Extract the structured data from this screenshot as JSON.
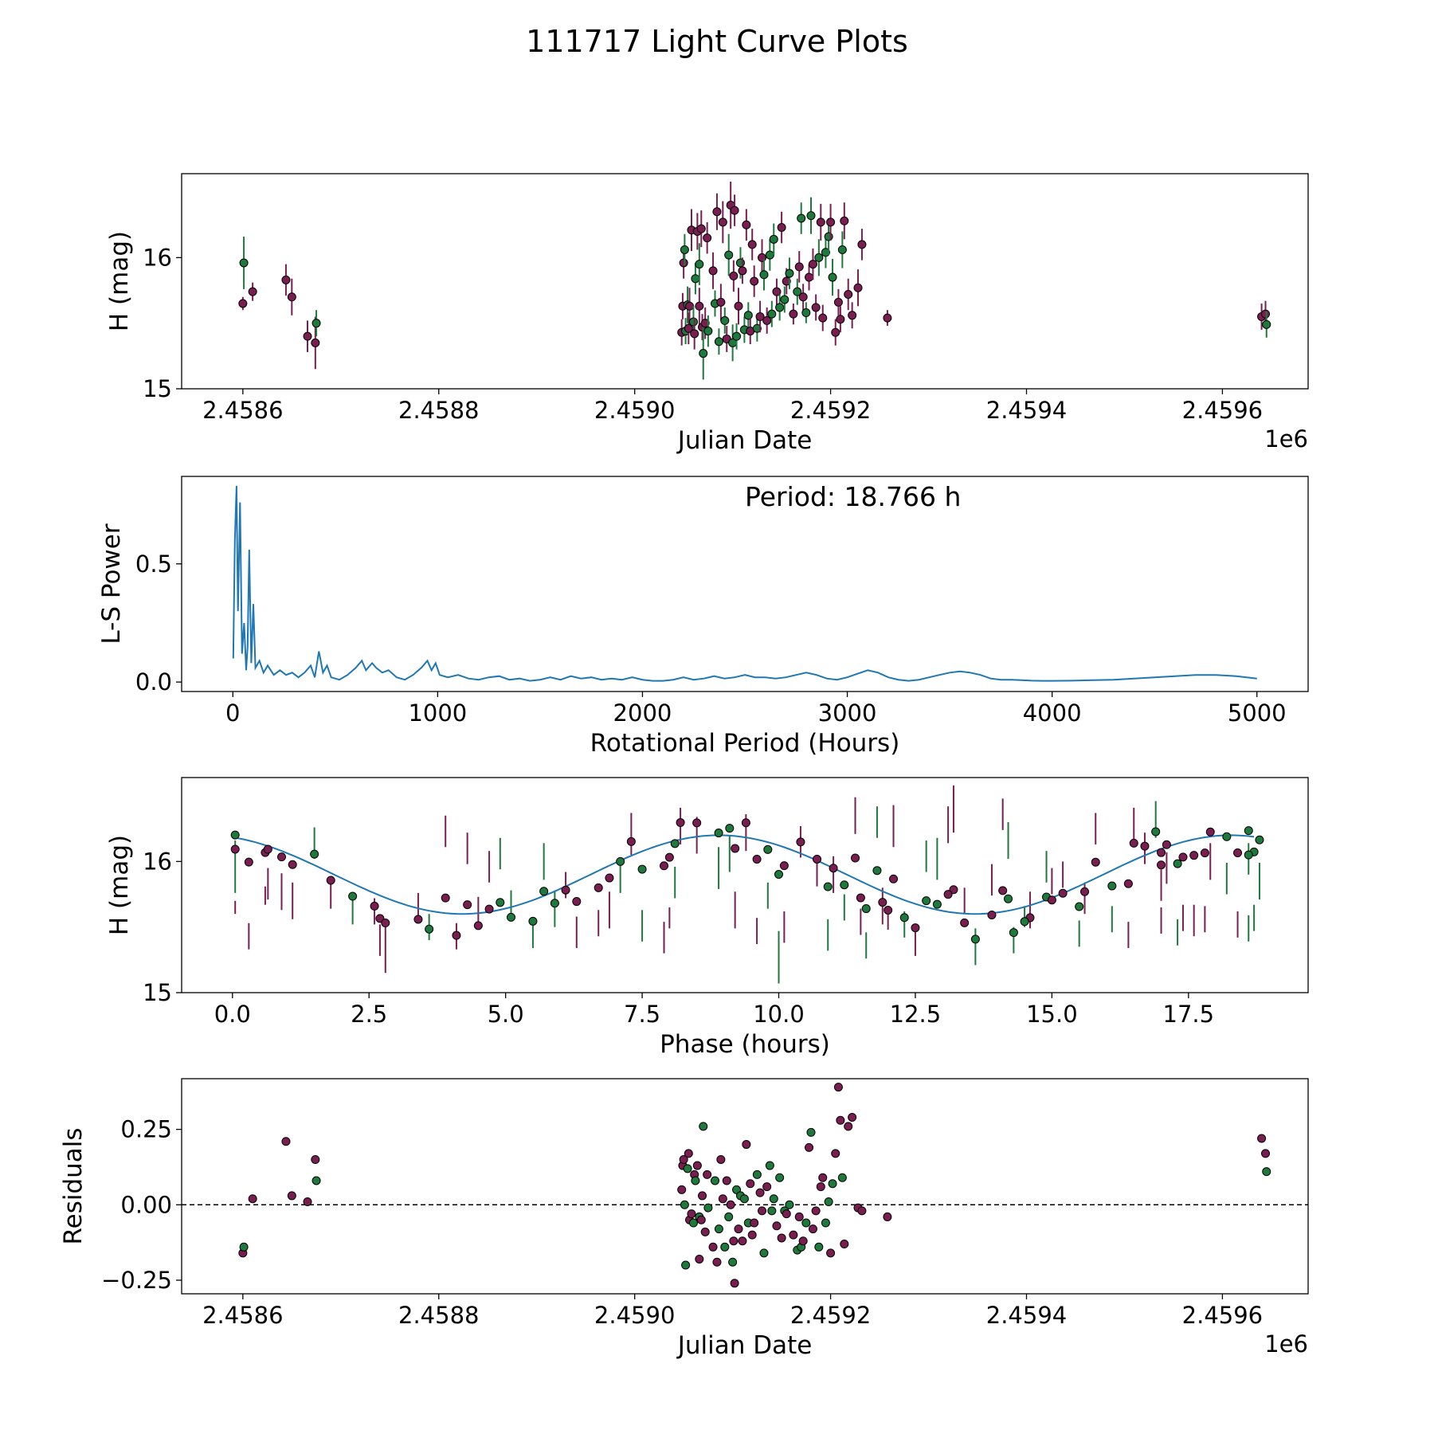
{
  "title": "111717 Light Curve Plots",
  "colors": {
    "magenta": "#7a1e52",
    "green": "#1e7a3c",
    "curve": "#1f77b4",
    "zero_line": "#000000"
  },
  "chart_data": [
    {
      "id": "lightcurve",
      "type": "scatter",
      "xlabel": "Julian Date",
      "ylabel": "H (mag)",
      "offset_label": "1e6",
      "xlim": [
        2458537.5,
        2459687.5
      ],
      "ylim": [
        15.0,
        16.64
      ],
      "xticks": [
        2458600,
        2458800,
        2459000,
        2459200,
        2459400,
        2459600
      ],
      "xtick_labels": [
        "2.4586",
        "2.4588",
        "2.4590",
        "2.4592",
        "2.4594",
        "2.4596"
      ],
      "yticks": [
        15,
        16
      ],
      "ytick_labels": [
        "15",
        "16"
      ]
    },
    {
      "id": "periodogram",
      "type": "line",
      "xlabel": "Rotational Period (Hours)",
      "ylabel": "L-S Power",
      "annotation": "Period: 18.766 h",
      "xlim": [
        -250,
        5250
      ],
      "ylim": [
        -0.04,
        0.87
      ],
      "xticks": [
        0,
        1000,
        2000,
        3000,
        4000,
        5000
      ],
      "xtick_labels": [
        "0",
        "1000",
        "2000",
        "3000",
        "4000",
        "5000"
      ],
      "yticks": [
        0.0,
        0.5
      ],
      "ytick_labels": [
        "0.0",
        "0.5"
      ],
      "x": [
        2,
        10,
        18,
        25,
        35,
        45,
        55,
        65,
        72,
        80,
        90,
        100,
        110,
        130,
        150,
        170,
        200,
        230,
        260,
        290,
        320,
        350,
        380,
        400,
        420,
        440,
        460,
        480,
        520,
        560,
        600,
        630,
        650,
        680,
        700,
        730,
        760,
        800,
        840,
        880,
        920,
        950,
        970,
        990,
        1010,
        1050,
        1100,
        1150,
        1200,
        1250,
        1300,
        1350,
        1400,
        1450,
        1500,
        1550,
        1600,
        1650,
        1700,
        1750,
        1800,
        1850,
        1900,
        1950,
        2000,
        2050,
        2100,
        2150,
        2200,
        2250,
        2300,
        2350,
        2400,
        2450,
        2500,
        2550,
        2600,
        2650,
        2700,
        2750,
        2800,
        2850,
        2900,
        2950,
        3000,
        3050,
        3100,
        3150,
        3200,
        3250,
        3300,
        3350,
        3400,
        3450,
        3500,
        3550,
        3600,
        3650,
        3700,
        3750,
        3800,
        3850,
        3900,
        3950,
        4000,
        4100,
        4200,
        4300,
        4400,
        4500,
        4600,
        4700,
        4800,
        4900,
        5000
      ],
      "power": [
        0.1,
        0.6,
        0.83,
        0.3,
        0.76,
        0.12,
        0.25,
        0.05,
        0.15,
        0.56,
        0.08,
        0.33,
        0.06,
        0.09,
        0.04,
        0.07,
        0.03,
        0.05,
        0.03,
        0.04,
        0.02,
        0.04,
        0.07,
        0.02,
        0.13,
        0.04,
        0.07,
        0.02,
        0.01,
        0.03,
        0.06,
        0.09,
        0.05,
        0.08,
        0.06,
        0.04,
        0.05,
        0.02,
        0.01,
        0.03,
        0.06,
        0.09,
        0.05,
        0.08,
        0.03,
        0.02,
        0.03,
        0.015,
        0.01,
        0.02,
        0.025,
        0.01,
        0.015,
        0.005,
        0.01,
        0.02,
        0.01,
        0.025,
        0.015,
        0.02,
        0.01,
        0.015,
        0.01,
        0.02,
        0.01,
        0.005,
        0.005,
        0.01,
        0.02,
        0.01,
        0.015,
        0.025,
        0.015,
        0.02,
        0.03,
        0.02,
        0.02,
        0.015,
        0.02,
        0.03,
        0.04,
        0.03,
        0.015,
        0.01,
        0.02,
        0.035,
        0.05,
        0.04,
        0.02,
        0.01,
        0.005,
        0.01,
        0.02,
        0.03,
        0.04,
        0.045,
        0.04,
        0.03,
        0.015,
        0.01,
        0.01,
        0.008,
        0.006,
        0.005,
        0.005,
        0.006,
        0.008,
        0.01,
        0.015,
        0.02,
        0.025,
        0.03,
        0.03,
        0.025,
        0.015
      ]
    },
    {
      "id": "phased",
      "type": "scatter",
      "xlabel": "Phase (hours)",
      "ylabel": "H (mag)",
      "xlim": [
        -0.93,
        19.69
      ],
      "ylim": [
        15.0,
        16.64
      ],
      "xticks": [
        0,
        2.5,
        5,
        7.5,
        10,
        12.5,
        15,
        17.5
      ],
      "xtick_labels": [
        "0.0",
        "2.5",
        "5.0",
        "7.5",
        "10.0",
        "12.5",
        "15.0",
        "17.5"
      ],
      "yticks": [
        15,
        16
      ],
      "ytick_labels": [
        "15",
        "16"
      ],
      "fit": {
        "mean": 15.9,
        "amplitude": 0.3,
        "period_h": 9.383,
        "peak_phase_h": 8.9
      }
    },
    {
      "id": "residuals",
      "type": "scatter",
      "xlabel": "Julian Date",
      "ylabel": "Residuals",
      "offset_label": "1e6",
      "xlim": [
        2458537.5,
        2459687.5
      ],
      "ylim": [
        -0.295,
        0.418
      ],
      "xticks": [
        2458600,
        2458800,
        2459000,
        2459200,
        2459400,
        2459600
      ],
      "xtick_labels": [
        "2.4586",
        "2.4588",
        "2.4590",
        "2.4592",
        "2.4594",
        "2.4596"
      ],
      "yticks": [
        -0.25,
        0.0,
        0.25
      ],
      "ytick_labels": [
        "−0.25",
        "0.00",
        "0.25"
      ],
      "zero_line": 0.0
    }
  ],
  "observations": [
    {
      "jd": 2458600,
      "h": 15.65,
      "err": 0.05,
      "res": -0.16,
      "ph": 0.05,
      "c": 1
    },
    {
      "jd": 2458601,
      "h": 15.96,
      "err": 0.2,
      "res": -0.14,
      "ph": 0.05,
      "c": 0
    },
    {
      "jd": 2458610,
      "h": 15.74,
      "err": 0.07,
      "res": 0.02,
      "ph": 0.6,
      "c": 1
    },
    {
      "jd": 2458644,
      "h": 15.83,
      "err": 0.12,
      "res": 0.21,
      "ph": 0.65,
      "c": 1
    },
    {
      "jd": 2458650,
      "h": 15.7,
      "err": 0.14,
      "res": 0.03,
      "ph": 1.1,
      "c": 1
    },
    {
      "jd": 2458666,
      "h": 15.4,
      "err": 0.12,
      "res": 0.01,
      "ph": 2.7,
      "c": 1
    },
    {
      "jd": 2458674,
      "h": 15.35,
      "err": 0.2,
      "res": 0.15,
      "ph": 2.8,
      "c": 1
    },
    {
      "jd": 2458675,
      "h": 15.5,
      "err": 0.1,
      "res": 0.08,
      "ph": 3.6,
      "c": 0
    },
    {
      "jd": 2459048,
      "h": 15.43,
      "err": 0.1,
      "res": 0.05,
      "ph": 4.1,
      "c": 1
    },
    {
      "jd": 2459049,
      "h": 15.63,
      "err": 0.1,
      "res": 0.13,
      "ph": 4.5,
      "c": 1
    },
    {
      "jd": 2459050,
      "h": 15.96,
      "err": 0.12,
      "res": 0.15,
      "ph": 4.7,
      "c": 1
    },
    {
      "jd": 2459051,
      "h": 16.06,
      "err": 0.12,
      "res": 0.0,
      "ph": 4.9,
      "c": 0
    },
    {
      "jd": 2459052,
      "h": 15.44,
      "err": 0.1,
      "res": -0.2,
      "ph": 5.5,
      "c": 0
    },
    {
      "jd": 2459054,
      "h": 15.64,
      "err": 0.14,
      "res": 0.12,
      "ph": 5.9,
      "c": 0
    },
    {
      "jd": 2459055,
      "h": 15.46,
      "err": 0.12,
      "res": 0.17,
      "ph": 6.3,
      "c": 1
    },
    {
      "jd": 2459056,
      "h": 15.63,
      "err": 0.14,
      "res": -0.05,
      "ph": 6.9,
      "c": 1
    },
    {
      "jd": 2459058,
      "h": 16.21,
      "err": 0.16,
      "res": -0.03,
      "ph": 7.3,
      "c": 1
    },
    {
      "jd": 2459060,
      "h": 15.51,
      "err": 0.12,
      "res": -0.06,
      "ph": 7.5,
      "c": 0
    },
    {
      "jd": 2459061,
      "h": 15.42,
      "err": 0.12,
      "res": 0.1,
      "ph": 7.9,
      "c": 1
    },
    {
      "jd": 2459062,
      "h": 15.84,
      "err": 0.12,
      "res": 0.08,
      "ph": 8.1,
      "c": 0
    },
    {
      "jd": 2459064,
      "h": 16.2,
      "err": 0.14,
      "res": 0.13,
      "ph": 8.5,
      "c": 1
    },
    {
      "jd": 2459066,
      "h": 15.95,
      "err": 0.16,
      "res": -0.04,
      "ph": 8.9,
      "c": 0
    },
    {
      "jd": 2459066,
      "h": 15.63,
      "err": 0.14,
      "res": -0.18,
      "ph": 9.2,
      "c": 1
    },
    {
      "jd": 2459068,
      "h": 16.22,
      "err": 0.14,
      "res": -0.05,
      "ph": 9.4,
      "c": 1
    },
    {
      "jd": 2459069,
      "h": 15.47,
      "err": 0.1,
      "res": 0.03,
      "ph": 9.6,
      "c": 1
    },
    {
      "jd": 2459070,
      "h": 15.27,
      "err": 0.2,
      "res": 0.26,
      "ph": 10.0,
      "c": 0
    },
    {
      "jd": 2459072,
      "h": 15.5,
      "err": 0.12,
      "res": -0.09,
      "ph": 10.1,
      "c": 1
    },
    {
      "jd": 2459074,
      "h": 16.15,
      "err": 0.12,
      "res": 0.1,
      "ph": 10.4,
      "c": 1
    },
    {
      "jd": 2459075,
      "h": 15.44,
      "err": 0.12,
      "res": -0.01,
      "ph": 10.9,
      "c": 0
    },
    {
      "jd": 2459080,
      "h": 15.9,
      "err": 0.14,
      "res": -0.14,
      "ph": 11.0,
      "c": 1
    },
    {
      "jd": 2459082,
      "h": 15.65,
      "err": 0.1,
      "res": 0.08,
      "ph": 11.2,
      "c": 0
    },
    {
      "jd": 2459084,
      "h": 16.35,
      "err": 0.14,
      "res": -0.19,
      "ph": 11.4,
      "c": 1
    },
    {
      "jd": 2459086,
      "h": 15.36,
      "err": 0.1,
      "res": -0.08,
      "ph": 11.6,
      "c": 0
    },
    {
      "jd": 2459088,
      "h": 15.66,
      "err": 0.14,
      "res": 0.15,
      "ph": 11.9,
      "c": 1
    },
    {
      "jd": 2459090,
      "h": 16.27,
      "err": 0.16,
      "res": 0.02,
      "ph": 12.1,
      "c": 1
    },
    {
      "jd": 2459092,
      "h": 15.52,
      "err": 0.1,
      "res": -0.14,
      "ph": 12.3,
      "c": 0
    },
    {
      "jd": 2459094,
      "h": 15.38,
      "err": 0.1,
      "res": 0.08,
      "ph": 12.5,
      "c": 1
    },
    {
      "jd": 2459096,
      "h": 16.02,
      "err": 0.16,
      "res": -0.04,
      "ph": 12.9,
      "c": 0
    },
    {
      "jd": 2459098,
      "h": 16.4,
      "err": 0.18,
      "res": 0.0,
      "ph": 13.2,
      "c": 1
    },
    {
      "jd": 2459100,
      "h": 15.35,
      "err": 0.14,
      "res": -0.19,
      "ph": 13.6,
      "c": 0
    },
    {
      "jd": 2459101,
      "h": 15.86,
      "err": 0.12,
      "res": -0.12,
      "ph": 13.9,
      "c": 1
    },
    {
      "jd": 2459102,
      "h": 16.36,
      "err": 0.12,
      "res": -0.26,
      "ph": 14.1,
      "c": 1
    },
    {
      "jd": 2459104,
      "h": 15.4,
      "err": 0.1,
      "res": 0.05,
      "ph": 14.3,
      "c": 0
    },
    {
      "jd": 2459106,
      "h": 15.63,
      "err": 0.14,
      "res": -0.08,
      "ph": 14.6,
      "c": 1
    },
    {
      "jd": 2459108,
      "h": 15.96,
      "err": 0.12,
      "res": 0.03,
      "ph": 14.9,
      "c": 0
    },
    {
      "jd": 2459110,
      "h": 15.9,
      "err": 0.1,
      "res": -0.12,
      "ph": 15.2,
      "c": 1
    },
    {
      "jd": 2459112,
      "h": 15.45,
      "err": 0.1,
      "res": 0.02,
      "ph": 15.5,
      "c": 0
    },
    {
      "jd": 2459114,
      "h": 16.25,
      "err": 0.12,
      "res": 0.2,
      "ph": 15.8,
      "c": 1
    },
    {
      "jd": 2459116,
      "h": 15.56,
      "err": 0.1,
      "res": -0.06,
      "ph": 16.1,
      "c": 0
    },
    {
      "jd": 2459118,
      "h": 15.44,
      "err": 0.1,
      "res": 0.07,
      "ph": 16.4,
      "c": 1
    },
    {
      "jd": 2459120,
      "h": 16.1,
      "err": 0.12,
      "res": -0.1,
      "ph": 16.7,
      "c": 1
    },
    {
      "jd": 2459122,
      "h": 15.82,
      "err": 0.12,
      "res": -0.06,
      "ph": 17.0,
      "c": 1
    },
    {
      "jd": 2459125,
      "h": 15.46,
      "err": 0.1,
      "res": 0.1,
      "ph": 17.3,
      "c": 0
    },
    {
      "jd": 2459128,
      "h": 15.55,
      "err": 0.12,
      "res": 0.04,
      "ph": 17.6,
      "c": 1
    },
    {
      "jd": 2459130,
      "h": 16.0,
      "err": 0.14,
      "res": -0.02,
      "ph": 17.9,
      "c": 1
    },
    {
      "jd": 2459132,
      "h": 15.87,
      "err": 0.12,
      "res": -0.16,
      "ph": 18.2,
      "c": 0
    },
    {
      "jd": 2459135,
      "h": 15.52,
      "err": 0.1,
      "res": 0.06,
      "ph": 18.4,
      "c": 1
    },
    {
      "jd": 2459138,
      "h": 16.02,
      "err": 0.12,
      "res": 0.13,
      "ph": 18.6,
      "c": 0
    },
    {
      "jd": 2459140,
      "h": 15.57,
      "err": 0.1,
      "res": -0.02,
      "ph": 18.7,
      "c": 0
    },
    {
      "jd": 2459142,
      "h": 16.14,
      "err": 0.12,
      "res": 0.02,
      "ph": 1.5,
      "c": 0
    },
    {
      "jd": 2459145,
      "h": 15.74,
      "err": 0.1,
      "res": -0.07,
      "ph": 1.8,
      "c": 1
    },
    {
      "jd": 2459148,
      "h": 15.62,
      "err": 0.1,
      "res": 0.09,
      "ph": 2.2,
      "c": 0
    },
    {
      "jd": 2459150,
      "h": 16.23,
      "err": 0.12,
      "res": -0.11,
      "ph": 3.9,
      "c": 1
    },
    {
      "jd": 2459153,
      "h": 15.68,
      "err": 0.1,
      "res": -0.02,
      "ph": 5.1,
      "c": 0
    },
    {
      "jd": 2459155,
      "h": 15.82,
      "err": 0.1,
      "res": -0.03,
      "ph": 6.1,
      "c": 1
    },
    {
      "jd": 2459158,
      "h": 15.88,
      "err": 0.12,
      "res": 0.0,
      "ph": 7.1,
      "c": 0
    },
    {
      "jd": 2459162,
      "h": 15.57,
      "err": 0.08,
      "res": -0.1,
      "ph": 8.0,
      "c": 1
    },
    {
      "jd": 2459166,
      "h": 15.74,
      "err": 0.1,
      "res": -0.15,
      "ph": 9.8,
      "c": 0
    },
    {
      "jd": 2459168,
      "h": 15.93,
      "err": 0.12,
      "res": -0.04,
      "ph": 10.7,
      "c": 1
    },
    {
      "jd": 2459170,
      "h": 16.3,
      "err": 0.12,
      "res": -0.14,
      "ph": 11.8,
      "c": 0
    },
    {
      "jd": 2459172,
      "h": 15.7,
      "err": 0.1,
      "res": -0.12,
      "ph": 13.4,
      "c": 1
    },
    {
      "jd": 2459175,
      "h": 15.58,
      "err": 0.08,
      "res": -0.06,
      "ph": 14.5,
      "c": 0
    },
    {
      "jd": 2459178,
      "h": 15.85,
      "err": 0.1,
      "res": 0.19,
      "ph": 15.0,
      "c": 1
    },
    {
      "jd": 2459180,
      "h": 16.32,
      "err": 0.14,
      "res": 0.24,
      "ph": 16.9,
      "c": 0
    },
    {
      "jd": 2459182,
      "h": 15.95,
      "err": 0.12,
      "res": -0.08,
      "ph": 17.1,
      "c": 1
    },
    {
      "jd": 2459185,
      "h": 15.62,
      "err": 0.1,
      "res": -0.02,
      "ph": 2.6,
      "c": 1
    },
    {
      "jd": 2459188,
      "h": 16.0,
      "err": 0.14,
      "res": -0.14,
      "ph": 5.7,
      "c": 0
    },
    {
      "jd": 2459190,
      "h": 16.27,
      "err": 0.14,
      "res": 0.06,
      "ph": 8.2,
      "c": 1
    },
    {
      "jd": 2459192,
      "h": 15.54,
      "err": 0.1,
      "res": 0.09,
      "ph": 11.5,
      "c": 1
    },
    {
      "jd": 2459195,
      "h": 16.04,
      "err": 0.12,
      "res": -0.06,
      "ph": 12.7,
      "c": 0
    },
    {
      "jd": 2459198,
      "h": 16.16,
      "err": 0.14,
      "res": 0.01,
      "ph": 14.2,
      "c": 0
    },
    {
      "jd": 2459200,
      "h": 16.27,
      "err": 0.14,
      "res": -0.16,
      "ph": 16.5,
      "c": 1
    },
    {
      "jd": 2459202,
      "h": 15.85,
      "err": 0.14,
      "res": 0.07,
      "ph": 18.8,
      "c": 0
    },
    {
      "jd": 2459205,
      "h": 15.43,
      "err": 0.1,
      "res": 0.17,
      "ph": 0.3,
      "c": 1
    },
    {
      "jd": 2459208,
      "h": 15.66,
      "err": 0.1,
      "res": 0.39,
      "ph": 3.4,
      "c": 1
    },
    {
      "jd": 2459210,
      "h": 15.53,
      "err": 0.1,
      "res": 0.28,
      "ph": 6.7,
      "c": 1
    },
    {
      "jd": 2459212,
      "h": 16.06,
      "err": 0.14,
      "res": 0.09,
      "ph": 9.1,
      "c": 0
    },
    {
      "jd": 2459214,
      "h": 16.28,
      "err": 0.14,
      "res": -0.13,
      "ph": 13.1,
      "c": 1
    },
    {
      "jd": 2459218,
      "h": 15.72,
      "err": 0.12,
      "res": 0.26,
      "ph": 15.6,
      "c": 1
    },
    {
      "jd": 2459222,
      "h": 15.56,
      "err": 0.1,
      "res": 0.29,
      "ph": 17.8,
      "c": 1
    },
    {
      "jd": 2459228,
      "h": 15.77,
      "err": 0.14,
      "res": -0.01,
      "ph": 0.9,
      "c": 1
    },
    {
      "jd": 2459232,
      "h": 16.1,
      "err": 0.12,
      "res": -0.02,
      "ph": 4.3,
      "c": 1
    },
    {
      "jd": 2459258,
      "h": 15.54,
      "err": 0.06,
      "res": -0.04,
      "ph": 12.0,
      "c": 1
    },
    {
      "jd": 2459640,
      "h": 15.55,
      "err": 0.1,
      "res": 0.22,
      "ph": 17.0,
      "c": 1
    },
    {
      "jd": 2459644,
      "h": 15.57,
      "err": 0.1,
      "res": 0.17,
      "ph": 17.4,
      "c": 1
    },
    {
      "jd": 2459645,
      "h": 15.49,
      "err": 0.1,
      "res": 0.11,
      "ph": 18.6,
      "c": 0
    }
  ]
}
